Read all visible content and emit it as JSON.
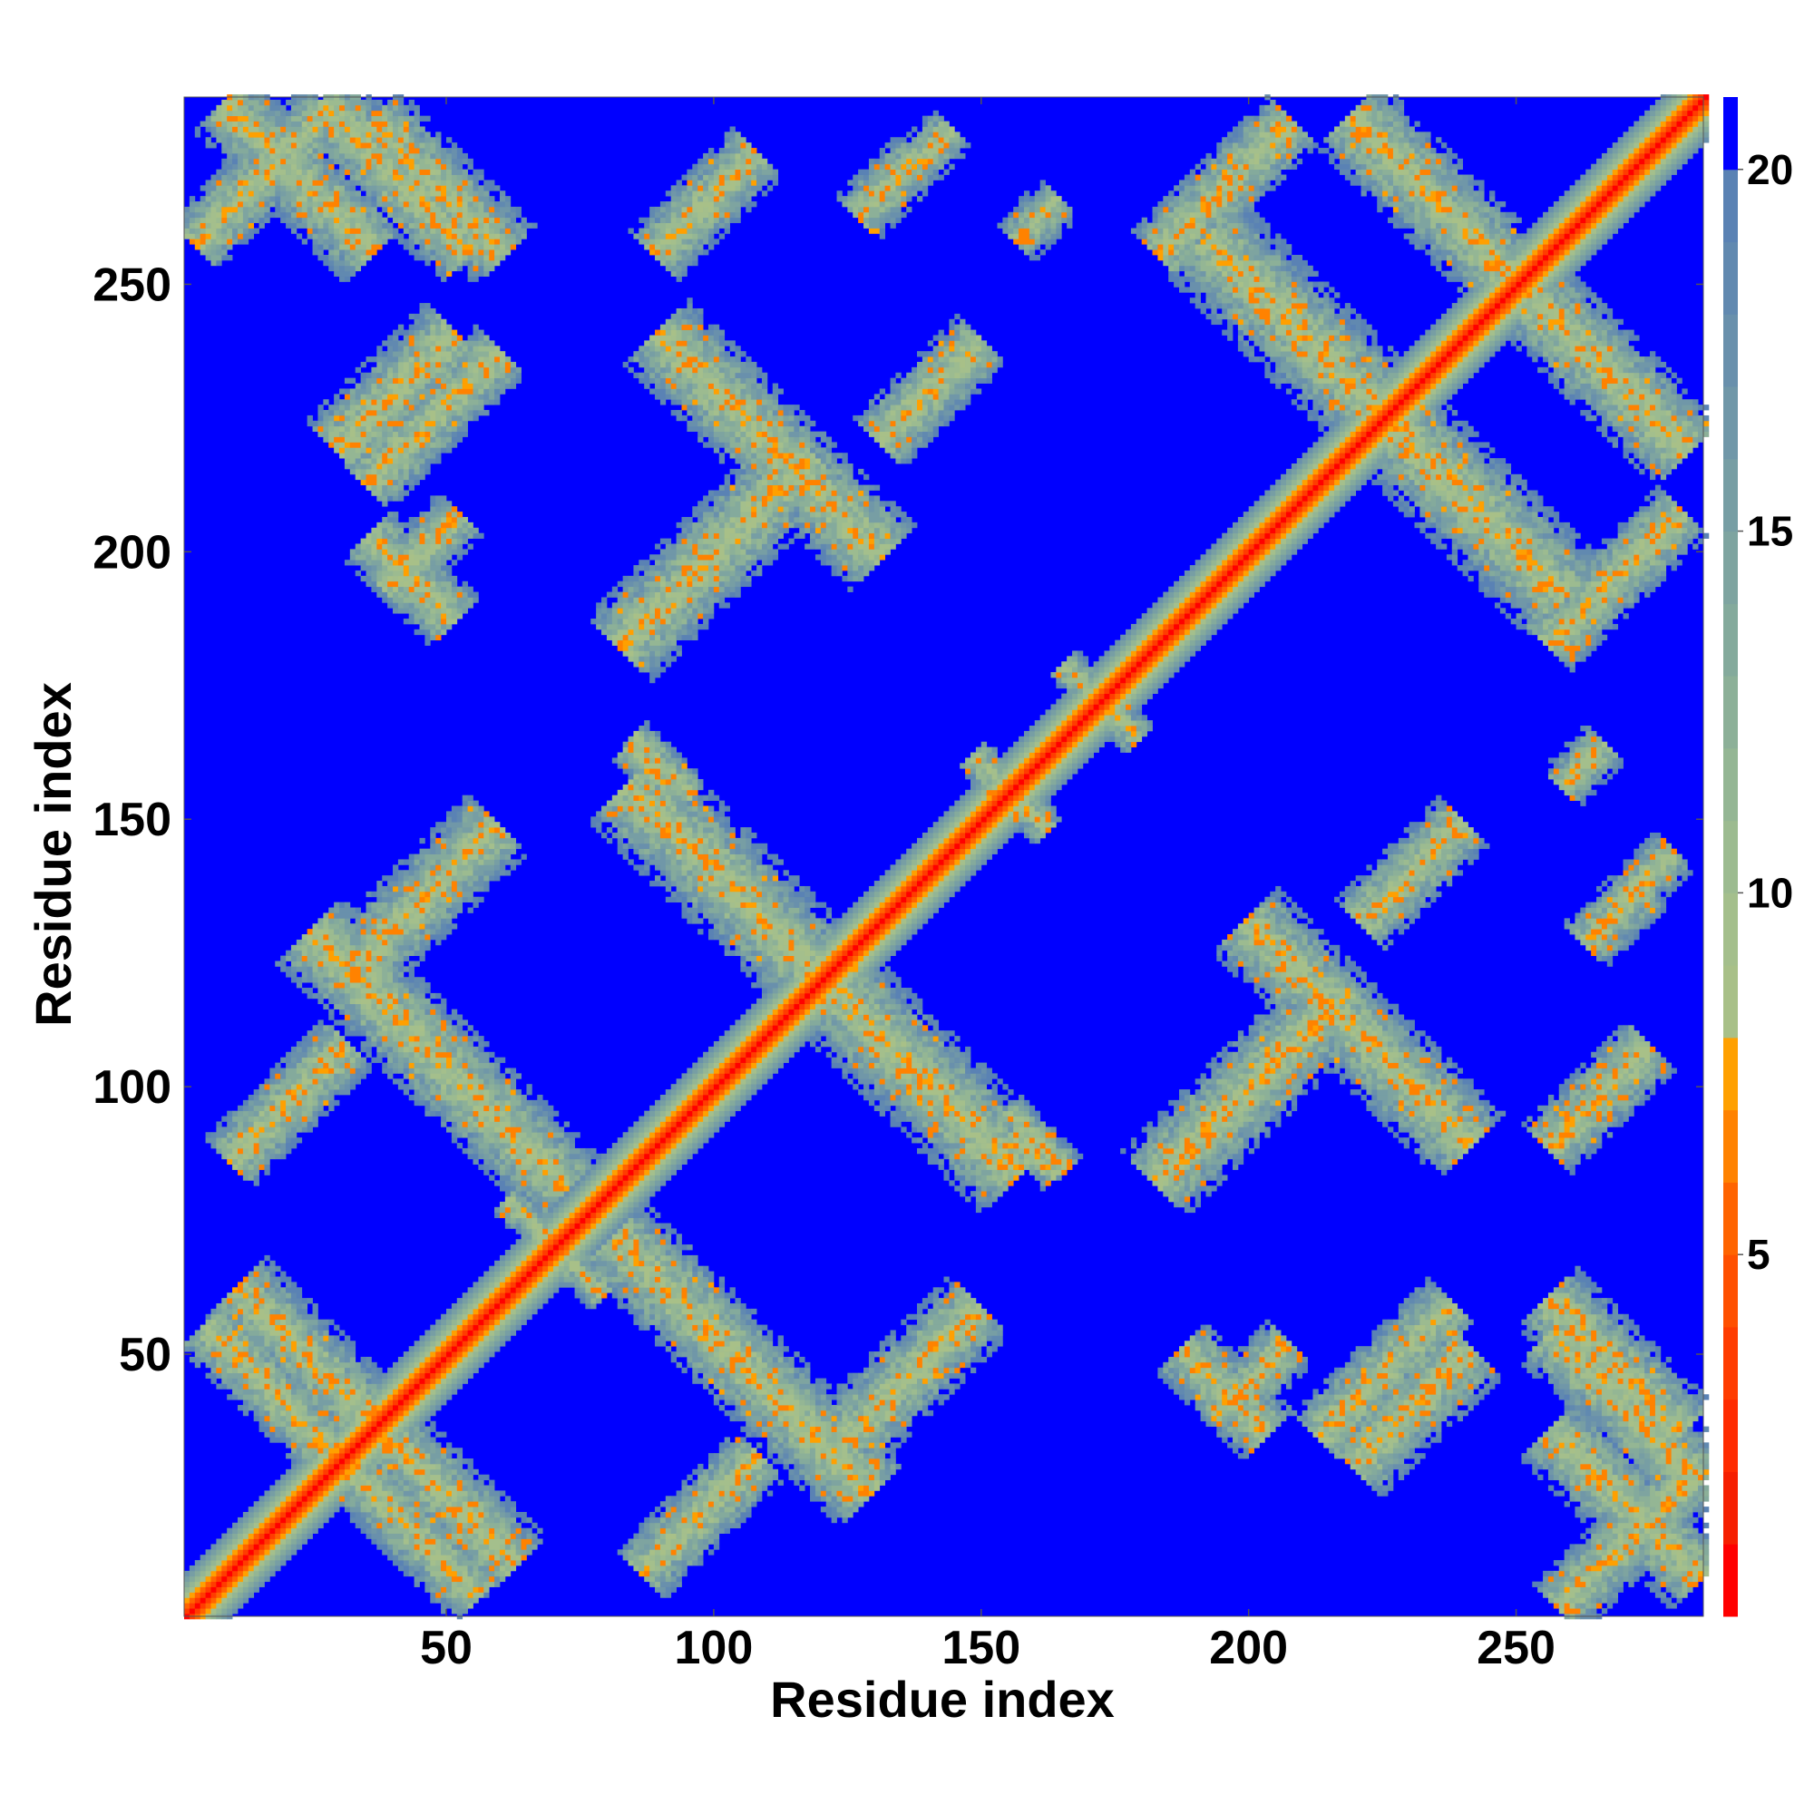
{
  "chart_data": {
    "type": "heatmap",
    "title": "",
    "xlabel": "Residue index",
    "ylabel": "Residue index",
    "n_residues": 285,
    "xlim": [
      1,
      285
    ],
    "ylim": [
      1,
      285
    ],
    "x_ticks": [
      50,
      100,
      150,
      200,
      250
    ],
    "y_ticks": [
      50,
      100,
      150,
      200,
      250
    ],
    "colorbar": {
      "range": [
        0,
        21
      ],
      "ticks": [
        5,
        10,
        15,
        20
      ],
      "levels": [
        {
          "upper": 1,
          "color": "#ff0000"
        },
        {
          "upper": 2,
          "color": "#f61f00"
        },
        {
          "upper": 3,
          "color": "#ff2b00"
        },
        {
          "upper": 4,
          "color": "#ff3c00"
        },
        {
          "upper": 5,
          "color": "#ff5000"
        },
        {
          "upper": 6,
          "color": "#ff6400"
        },
        {
          "upper": 7,
          "color": "#ff8200"
        },
        {
          "upper": 8,
          "color": "#ffa000"
        },
        {
          "upper": 9,
          "color": "#a8c088"
        },
        {
          "upper": 10,
          "color": "#a4bf8c"
        },
        {
          "upper": 11,
          "color": "#9cbb90"
        },
        {
          "upper": 12,
          "color": "#94b694"
        },
        {
          "upper": 13,
          "color": "#8cb098"
        },
        {
          "upper": 14,
          "color": "#84aa9c"
        },
        {
          "upper": 15,
          "color": "#7ea4a0"
        },
        {
          "upper": 16,
          "color": "#779ea4"
        },
        {
          "upper": 17,
          "color": "#7097a8"
        },
        {
          "upper": 18,
          "color": "#6990ac"
        },
        {
          "upper": 19,
          "color": "#6189b0"
        },
        {
          "upper": 20,
          "color": "#5a82b4"
        },
        {
          "upper": 21,
          "color": "#0000ff"
        }
      ]
    },
    "background_value": 21,
    "diagonal_band_width": 8,
    "contact_bands": [
      {
        "cx": 27,
        "cy": 46,
        "dir": "anti",
        "half_len": 24,
        "half_w": 8
      },
      {
        "cx": 46,
        "cy": 27,
        "dir": "anti",
        "half_len": 24,
        "half_w": 8
      },
      {
        "cx": 40,
        "cy": 20,
        "dir": "anti",
        "half_len": 22,
        "half_w": 7
      },
      {
        "cx": 20,
        "cy": 40,
        "dir": "anti",
        "half_len": 22,
        "half_w": 7
      },
      {
        "cx": 105,
        "cy": 48,
        "dir": "anti",
        "half_len": 34,
        "half_w": 9
      },
      {
        "cx": 48,
        "cy": 105,
        "dir": "anti",
        "half_len": 34,
        "half_w": 9
      },
      {
        "cx": 135,
        "cy": 45,
        "dir": "diag",
        "half_len": 20,
        "half_w": 8
      },
      {
        "cx": 45,
        "cy": 135,
        "dir": "diag",
        "half_len": 20,
        "half_w": 8
      },
      {
        "cx": 20,
        "cy": 97,
        "dir": "diag",
        "half_len": 16,
        "half_w": 7
      },
      {
        "cx": 97,
        "cy": 20,
        "dir": "diag",
        "half_len": 16,
        "half_w": 7
      },
      {
        "cx": 115,
        "cy": 125,
        "dir": "anti",
        "half_len": 45,
        "half_w": 10
      },
      {
        "cx": 125,
        "cy": 115,
        "dir": "anti",
        "half_len": 45,
        "half_w": 10
      },
      {
        "cx": 110,
        "cy": 220,
        "dir": "anti",
        "half_len": 30,
        "half_w": 9
      },
      {
        "cx": 220,
        "cy": 110,
        "dir": "anti",
        "half_len": 30,
        "half_w": 9
      },
      {
        "cx": 100,
        "cy": 200,
        "dir": "diag",
        "half_len": 26,
        "half_w": 9
      },
      {
        "cx": 200,
        "cy": 100,
        "dir": "diag",
        "half_len": 26,
        "half_w": 9
      },
      {
        "cx": 22,
        "cy": 270,
        "dir": "anti",
        "half_len": 20,
        "half_w": 8
      },
      {
        "cx": 270,
        "cy": 22,
        "dir": "anti",
        "half_len": 20,
        "half_w": 8
      },
      {
        "cx": 48,
        "cy": 268,
        "dir": "anti",
        "half_len": 18,
        "half_w": 8
      },
      {
        "cx": 268,
        "cy": 48,
        "dir": "anti",
        "half_len": 18,
        "half_w": 8
      },
      {
        "cx": 47,
        "cy": 225,
        "dir": "diag",
        "half_len": 18,
        "half_w": 7
      },
      {
        "cx": 225,
        "cy": 47,
        "dir": "diag",
        "half_len": 18,
        "half_w": 7
      },
      {
        "cx": 43,
        "cy": 195,
        "dir": "anti",
        "half_len": 12,
        "half_w": 7
      },
      {
        "cx": 195,
        "cy": 43,
        "dir": "anti",
        "half_len": 12,
        "half_w": 7
      },
      {
        "cx": 225,
        "cy": 225,
        "dir": "anti",
        "half_len": 48,
        "half_w": 10
      },
      {
        "cx": 262,
        "cy": 238,
        "dir": "anti",
        "half_len": 28,
        "half_w": 9
      },
      {
        "cx": 238,
        "cy": 262,
        "dir": "anti",
        "half_len": 28,
        "half_w": 9
      },
      {
        "cx": 270,
        "cy": 40,
        "dir": "anti",
        "half_len": 20,
        "half_w": 8
      },
      {
        "cx": 40,
        "cy": 270,
        "dir": "anti",
        "half_len": 20,
        "half_w": 8
      },
      {
        "cx": 270,
        "cy": 15,
        "dir": "diag",
        "half_len": 18,
        "half_w": 7
      },
      {
        "cx": 15,
        "cy": 270,
        "dir": "diag",
        "half_len": 18,
        "half_w": 7
      },
      {
        "cx": 268,
        "cy": 195,
        "dir": "diag",
        "half_len": 18,
        "half_w": 7
      },
      {
        "cx": 195,
        "cy": 268,
        "dir": "diag",
        "half_len": 18,
        "half_w": 7
      },
      {
        "cx": 265,
        "cy": 98,
        "dir": "diag",
        "half_len": 14,
        "half_w": 7
      },
      {
        "cx": 98,
        "cy": 265,
        "dir": "diag",
        "half_len": 14,
        "half_w": 7
      },
      {
        "cx": 230,
        "cy": 40,
        "dir": "diag",
        "half_len": 16,
        "half_w": 8
      },
      {
        "cx": 40,
        "cy": 230,
        "dir": "diag",
        "half_len": 16,
        "half_w": 8
      },
      {
        "cx": 200,
        "cy": 45,
        "dir": "diag",
        "half_len": 10,
        "half_w": 6
      },
      {
        "cx": 45,
        "cy": 200,
        "dir": "diag",
        "half_len": 10,
        "half_w": 6
      },
      {
        "cx": 155,
        "cy": 155,
        "dir": "anti",
        "half_len": 10,
        "half_w": 4
      },
      {
        "cx": 172,
        "cy": 172,
        "dir": "anti",
        "half_len": 10,
        "half_w": 4
      },
      {
        "cx": 70,
        "cy": 70,
        "dir": "anti",
        "half_len": 13,
        "half_w": 4
      },
      {
        "cx": 230,
        "cy": 140,
        "dir": "diag",
        "half_len": 14,
        "half_w": 7
      },
      {
        "cx": 140,
        "cy": 230,
        "dir": "diag",
        "half_len": 14,
        "half_w": 7
      },
      {
        "cx": 87,
        "cy": 160,
        "dir": "anti",
        "half_len": 5,
        "half_w": 4
      },
      {
        "cx": 160,
        "cy": 87,
        "dir": "anti",
        "half_len": 5,
        "half_w": 4
      },
      {
        "cx": 132,
        "cy": 268,
        "dir": "diag",
        "half_len": 8,
        "half_w": 6
      },
      {
        "cx": 268,
        "cy": 132,
        "dir": "diag",
        "half_len": 8,
        "half_w": 6
      },
      {
        "cx": 160,
        "cy": 262,
        "dir": "diag",
        "half_len": 6,
        "half_w": 5
      },
      {
        "cx": 262,
        "cy": 160,
        "dir": "diag",
        "half_len": 6,
        "half_w": 5
      },
      {
        "cx": 160,
        "cy": 90,
        "dir": "anti",
        "half_len": 8,
        "half_w": 4
      },
      {
        "cx": 90,
        "cy": 160,
        "dir": "anti",
        "half_len": 8,
        "half_w": 4
      },
      {
        "cx": 275,
        "cy": 140,
        "dir": "diag",
        "half_len": 6,
        "half_w": 5
      },
      {
        "cx": 140,
        "cy": 275,
        "dir": "diag",
        "half_len": 6,
        "half_w": 5
      }
    ]
  }
}
